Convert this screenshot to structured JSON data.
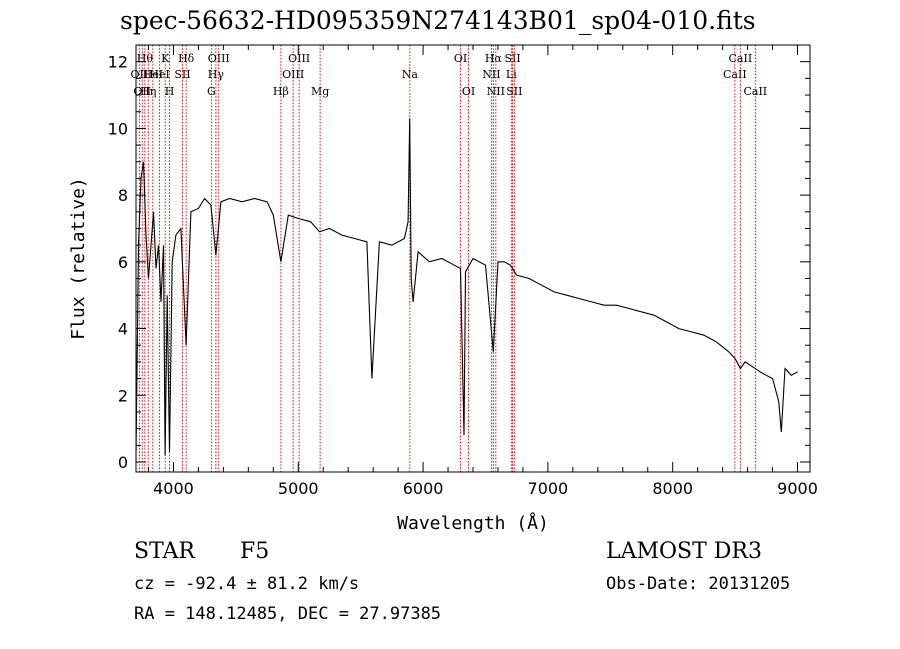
{
  "chart_data": {
    "type": "line",
    "title": "spec-56632-HD095359N274143B01_sp04-010.fits",
    "xlabel": "Wavelength (Å)",
    "ylabel": "Flux (relative)",
    "xlim": [
      3700,
      9100
    ],
    "ylim": [
      -0.3,
      12.5
    ],
    "x_ticks": [
      4000,
      5000,
      6000,
      7000,
      8000,
      9000
    ],
    "x_tick_labels": [
      "4000",
      "5000",
      "6000",
      "7000",
      "8000",
      "9000"
    ],
    "y_ticks": [
      0,
      2,
      4,
      6,
      8,
      10,
      12
    ],
    "y_tick_labels": [
      "0",
      "2",
      "4",
      "6",
      "8",
      "10",
      "12"
    ],
    "grid": false,
    "series": [
      {
        "name": "flux",
        "x": [
          3700,
          3720,
          3740,
          3760,
          3780,
          3800,
          3820,
          3840,
          3860,
          3880,
          3900,
          3920,
          3933,
          3950,
          3968,
          3990,
          4020,
          4060,
          4101,
          4140,
          4200,
          4250,
          4300,
          4340,
          4380,
          4450,
          4550,
          4650,
          4750,
          4800,
          4861,
          4920,
          5000,
          5100,
          5170,
          5250,
          5350,
          5450,
          5550,
          5590,
          5650,
          5750,
          5850,
          5880,
          5893,
          5905,
          5920,
          5960,
          6050,
          6150,
          6250,
          6300,
          6328,
          6340,
          6400,
          6500,
          6563,
          6600,
          6650,
          6700,
          6750,
          6850,
          6950,
          7050,
          7150,
          7250,
          7350,
          7450,
          7550,
          7650,
          7750,
          7850,
          7950,
          8050,
          8150,
          8250,
          8350,
          8450,
          8500,
          8542,
          8580,
          8662,
          8700,
          8750,
          8800,
          8850,
          8870,
          8900,
          8950,
          9000
        ],
        "y": [
          0.2,
          6.5,
          8.5,
          9.0,
          6.8,
          5.5,
          6.5,
          7.5,
          5.8,
          6.5,
          4.8,
          6.5,
          0.2,
          5.0,
          0.3,
          6.0,
          6.8,
          7.0,
          3.5,
          7.5,
          7.6,
          7.9,
          7.7,
          6.2,
          7.8,
          7.9,
          7.8,
          7.9,
          7.8,
          7.4,
          6.0,
          7.4,
          7.3,
          7.2,
          6.9,
          7.0,
          6.8,
          6.7,
          6.6,
          2.5,
          6.6,
          6.5,
          6.7,
          7.2,
          10.3,
          5.5,
          4.8,
          6.3,
          6.0,
          6.1,
          5.9,
          5.8,
          0.8,
          5.7,
          6.1,
          5.9,
          3.3,
          6.0,
          6.0,
          5.9,
          5.6,
          5.5,
          5.3,
          5.1,
          5.0,
          4.9,
          4.8,
          4.7,
          4.7,
          4.6,
          4.5,
          4.4,
          4.2,
          4.0,
          3.9,
          3.8,
          3.6,
          3.3,
          3.1,
          2.8,
          3.0,
          2.8,
          2.7,
          2.6,
          2.5,
          1.8,
          0.9,
          2.8,
          2.6,
          2.7
        ]
      }
    ],
    "line_markers": [
      {
        "wavelength": 3727,
        "label": "OII",
        "row": 1
      },
      {
        "wavelength": 3750,
        "label": "OII",
        "row": 2
      },
      {
        "wavelength": 3771,
        "label": "Hθ",
        "row": 0
      },
      {
        "wavelength": 3798,
        "label": "Hη",
        "row": 2
      },
      {
        "wavelength": 3835,
        "label": "HeI",
        "row": 1
      },
      {
        "wavelength": 3889,
        "label": "HeI",
        "row": 1
      },
      {
        "wavelength": 3934,
        "label": "K",
        "row": 0
      },
      {
        "wavelength": 3969,
        "label": "H",
        "row": 2
      },
      {
        "wavelength": 4072,
        "label": "SII",
        "row": 1
      },
      {
        "wavelength": 4102,
        "label": "Hδ",
        "row": 0
      },
      {
        "wavelength": 4304,
        "label": "G",
        "row": 2
      },
      {
        "wavelength": 4340,
        "label": "Hγ",
        "row": 1
      },
      {
        "wavelength": 4363,
        "label": "OIII",
        "row": 0
      },
      {
        "wavelength": 4861,
        "label": "Hβ",
        "row": 2
      },
      {
        "wavelength": 4959,
        "label": "OIII",
        "row": 1
      },
      {
        "wavelength": 5007,
        "label": "OIII",
        "row": 0
      },
      {
        "wavelength": 5175,
        "label": "Mg",
        "row": 2
      },
      {
        "wavelength": 5894,
        "label": "Na",
        "row": 1
      },
      {
        "wavelength": 6300,
        "label": "OI",
        "row": 0
      },
      {
        "wavelength": 6364,
        "label": "OI",
        "row": 2
      },
      {
        "wavelength": 6548,
        "label": "NII",
        "row": 1
      },
      {
        "wavelength": 6563,
        "label": "Hα",
        "row": 0
      },
      {
        "wavelength": 6583,
        "label": "NII",
        "row": 2
      },
      {
        "wavelength": 6707,
        "label": "Li",
        "row": 1
      },
      {
        "wavelength": 6717,
        "label": "SII",
        "row": 0
      },
      {
        "wavelength": 6731,
        "label": "SII",
        "row": 2
      },
      {
        "wavelength": 8498,
        "label": "CaII",
        "row": 1
      },
      {
        "wavelength": 8542,
        "label": "CaII",
        "row": 0
      },
      {
        "wavelength": 8662,
        "label": "CaII",
        "row": 2
      }
    ]
  },
  "info": {
    "object_class": "STAR",
    "subclass": "F5",
    "survey": "LAMOST DR3",
    "redshift_text": "cz = -92.4 ± 81.2 km/s",
    "obs_date_text": "Obs-Date: 20131205",
    "coords_text": "RA = 148.12485, DEC =  27.97385"
  }
}
